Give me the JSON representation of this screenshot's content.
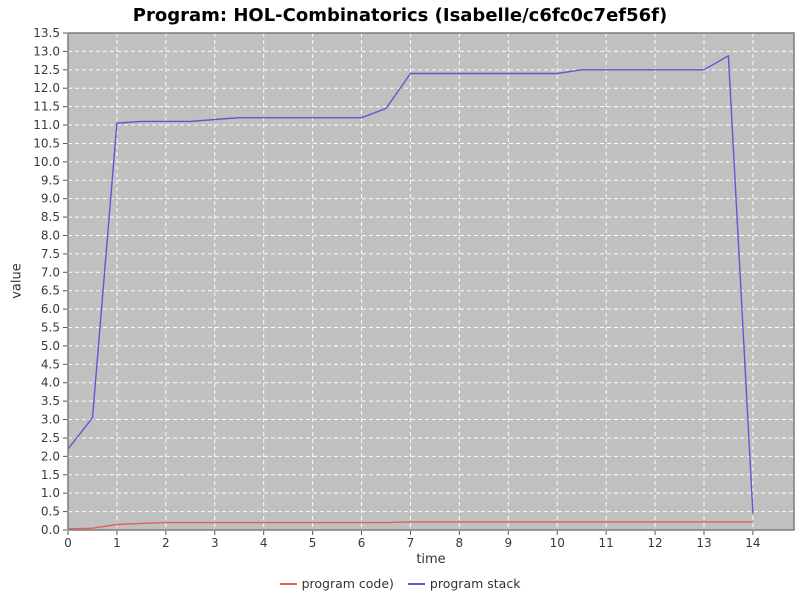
{
  "chart_data": {
    "type": "line",
    "title": "Program: HOL-Combinatorics (Isabelle/c6fc0c7ef56f)",
    "xlabel": "time",
    "ylabel": "value",
    "xlim": [
      0,
      14.84
    ],
    "ylim": [
      0,
      13.5
    ],
    "x_ticks": [
      0,
      1,
      2,
      3,
      4,
      5,
      6,
      7,
      8,
      9,
      10,
      11,
      12,
      13,
      14
    ],
    "y_tick_step": 0.5,
    "grid": true,
    "legend_position": "bottom",
    "plot_bg_color": "#c0c0c0",
    "grid_color": "#ffffff",
    "border_color": "#7d7d7d",
    "tick_label_color": "#3a3a3a",
    "series": [
      {
        "name": "program code)",
        "color": "#e06060",
        "points": [
          [
            0,
            0.03
          ],
          [
            0.5,
            0.05
          ],
          [
            1,
            0.15
          ],
          [
            1.5,
            0.18
          ],
          [
            2,
            0.2
          ],
          [
            2.5,
            0.2
          ],
          [
            3,
            0.2
          ],
          [
            3.5,
            0.2
          ],
          [
            4,
            0.2
          ],
          [
            4.5,
            0.2
          ],
          [
            5,
            0.2
          ],
          [
            5.5,
            0.2
          ],
          [
            6,
            0.2
          ],
          [
            6.5,
            0.2
          ],
          [
            7,
            0.22
          ],
          [
            7.5,
            0.22
          ],
          [
            8,
            0.22
          ],
          [
            8.5,
            0.22
          ],
          [
            9,
            0.22
          ],
          [
            9.5,
            0.22
          ],
          [
            10,
            0.22
          ],
          [
            10.5,
            0.22
          ],
          [
            11,
            0.22
          ],
          [
            11.5,
            0.22
          ],
          [
            12,
            0.22
          ],
          [
            12.5,
            0.22
          ],
          [
            13,
            0.22
          ],
          [
            13.5,
            0.22
          ],
          [
            14,
            0.22
          ]
        ]
      },
      {
        "name": "program stack",
        "color": "#5a5ad2",
        "points": [
          [
            0,
            2.2
          ],
          [
            0.5,
            3.05
          ],
          [
            1,
            11.05
          ],
          [
            1.5,
            11.1
          ],
          [
            2,
            11.1
          ],
          [
            2.5,
            11.1
          ],
          [
            3,
            11.15
          ],
          [
            3.5,
            11.2
          ],
          [
            4,
            11.2
          ],
          [
            4.5,
            11.2
          ],
          [
            5,
            11.2
          ],
          [
            5.5,
            11.2
          ],
          [
            6,
            11.2
          ],
          [
            6.5,
            11.45
          ],
          [
            7,
            12.4
          ],
          [
            7.5,
            12.4
          ],
          [
            8,
            12.4
          ],
          [
            8.5,
            12.4
          ],
          [
            9,
            12.4
          ],
          [
            9.5,
            12.4
          ],
          [
            10,
            12.4
          ],
          [
            10.5,
            12.5
          ],
          [
            11,
            12.5
          ],
          [
            11.5,
            12.5
          ],
          [
            12,
            12.5
          ],
          [
            12.5,
            12.5
          ],
          [
            13,
            12.5
          ],
          [
            13.5,
            12.88
          ],
          [
            14,
            0.45
          ]
        ]
      }
    ]
  }
}
